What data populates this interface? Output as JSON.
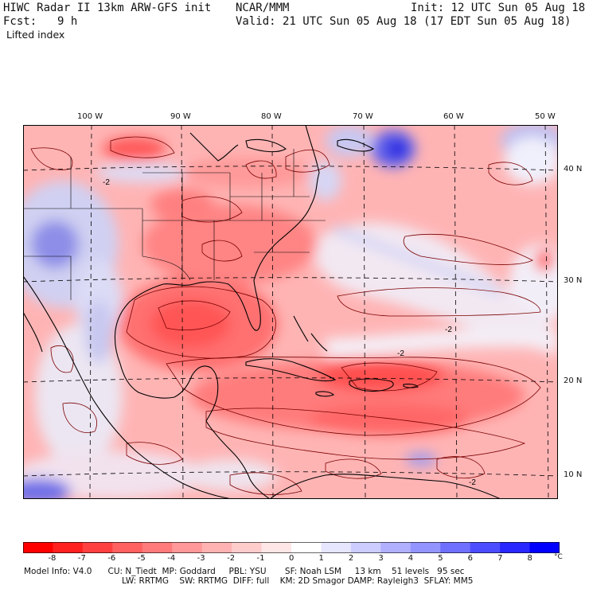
{
  "header": {
    "title": "HIWC Radar II 13km ARW-GFS init",
    "center": "NCAR/MMM",
    "init": "Init: 12 UTC Sun 05 Aug 18",
    "fcst_label": "Fcst:",
    "fcst_value": "9 h",
    "valid": "Valid: 21 UTC Sun 05 Aug 18 (17 EDT Sun 05 Aug 18)",
    "field": "Lifted index"
  },
  "axes": {
    "lon_labels": [
      "100 W",
      "90 W",
      "80 W",
      "70 W",
      "60 W",
      "50 W"
    ],
    "lat_labels": [
      "40 N",
      "30 N",
      "20 N",
      "10 N"
    ]
  },
  "map_annotations": [
    "-2",
    "-2",
    "-2",
    "-2"
  ],
  "colorbar": {
    "ticks": [
      "-8",
      "-7",
      "-6",
      "-5",
      "-4",
      "-3",
      "-2",
      "-1",
      "0",
      "1",
      "2",
      "3",
      "4",
      "5",
      "6",
      "7",
      "8"
    ],
    "unit": "°C",
    "colors": [
      "#ff0000",
      "#ff2020",
      "#ff4040",
      "#ff6060",
      "#ff7a7a",
      "#ff9898",
      "#ffb2b2",
      "#ffcccc",
      "#ffe6e6",
      "#ffffff",
      "#e6e6ff",
      "#ccccff",
      "#b0b0ff",
      "#9494ff",
      "#7070ff",
      "#4c4cff",
      "#2828ff",
      "#0000ff"
    ]
  },
  "footer": {
    "line1": "Model Info: V4.0      CU: N_Tiedt  MP: Goddard     PBL: YSU       SF: Noah LSM     13 km    51 levels   95 sec",
    "line2": "LW: RRTMG    SW: RRTMG  DIFF: full    KM: 2D Smagor DAMP: Rayleigh3  SFLAY: MM5"
  }
}
